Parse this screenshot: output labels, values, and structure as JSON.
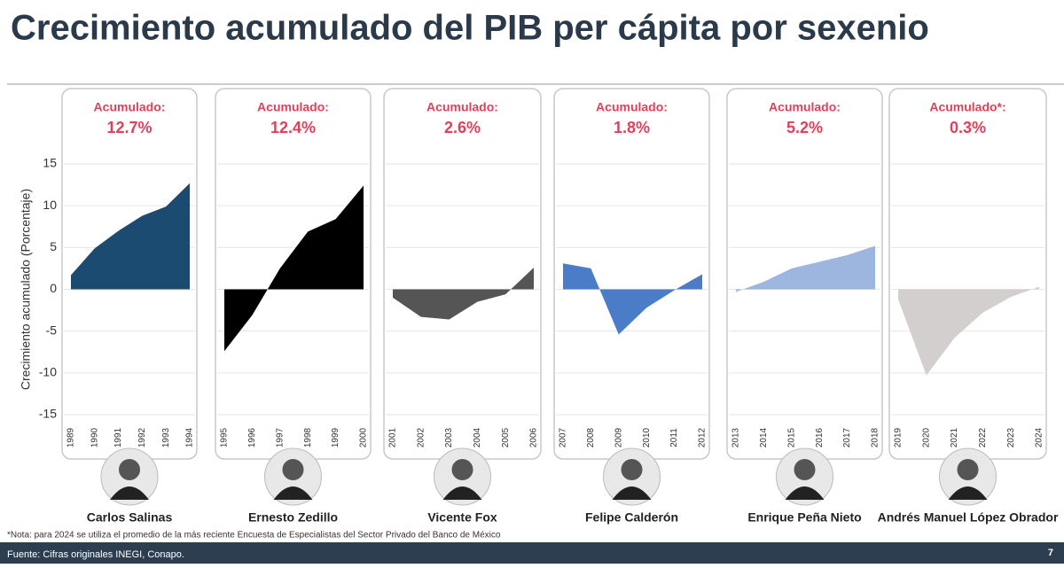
{
  "title": "Crecimiento acumulado del PIB per cápita por sexenio",
  "chart_data": [
    {
      "type": "area",
      "title": "Carlos Salinas",
      "accumulated_label": "Acumulado:",
      "accumulated": "12.7%",
      "ylabel": "Crecimiento acumulado (Porcentaje)",
      "ylim": [
        -15,
        15
      ],
      "yticks": [
        15,
        10,
        5,
        0,
        -5,
        -10,
        -15
      ],
      "grid": true,
      "categories": [
        "1989",
        "1990",
        "1991",
        "1992",
        "1993",
        "1994"
      ],
      "series": [
        {
          "color": "#1b4b70",
          "values": [
            1.7,
            4.9,
            7.0,
            8.8,
            9.9,
            12.7
          ]
        }
      ]
    },
    {
      "type": "area",
      "title": "Ernesto Zedillo",
      "accumulated_label": "Acumulado:",
      "accumulated": "12.4%",
      "ylim": [
        -15,
        15
      ],
      "categories": [
        "1995",
        "1996",
        "1997",
        "1998",
        "1999",
        "2000"
      ],
      "series": [
        {
          "color": "#000000",
          "values": [
            -7.4,
            -3.1,
            2.5,
            6.9,
            8.4,
            12.4
          ]
        }
      ]
    },
    {
      "type": "area",
      "title": "Vicente Fox",
      "accumulated_label": "Acumulado:",
      "accumulated": "2.6%",
      "ylim": [
        -15,
        15
      ],
      "categories": [
        "2001",
        "2002",
        "2003",
        "2004",
        "2005",
        "2006"
      ],
      "series": [
        {
          "color": "#555555",
          "values": [
            -1.0,
            -3.3,
            -3.6,
            -1.5,
            -0.6,
            2.6
          ]
        }
      ]
    },
    {
      "type": "area",
      "title": "Felipe Calderón",
      "accumulated_label": "Acumulado:",
      "accumulated": "1.8%",
      "ylim": [
        -15,
        15
      ],
      "categories": [
        "2007",
        "2008",
        "2009",
        "2010",
        "2011",
        "2012"
      ],
      "series": [
        {
          "color": "#4a7cc7",
          "values": [
            3.1,
            2.5,
            -5.4,
            -2.2,
            -0.1,
            1.8
          ]
        }
      ]
    },
    {
      "type": "area",
      "title": "Enrique Peña Nieto",
      "accumulated_label": "Acumulado:",
      "accumulated": "5.2%",
      "ylim": [
        -15,
        15
      ],
      "categories": [
        "2013",
        "2014",
        "2015",
        "2016",
        "2017",
        "2018"
      ],
      "series": [
        {
          "color": "#9cb6e0",
          "values": [
            -0.3,
            0.9,
            2.5,
            3.3,
            4.1,
            5.2
          ]
        }
      ]
    },
    {
      "type": "area",
      "title": "Andrés Manuel López Obrador",
      "accumulated_label": "Acumulado*:",
      "accumulated": "0.3%",
      "ylim": [
        -15,
        15
      ],
      "categories": [
        "2019",
        "2020",
        "2021",
        "2022",
        "2023",
        "2024"
      ],
      "series": [
        {
          "color": "#d2cfce",
          "values": [
            -1.2,
            -10.3,
            -5.8,
            -2.8,
            -0.9,
            0.3
          ]
        }
      ]
    }
  ],
  "note": "*Nota: para 2024 se utiliza el promedio de la más reciente Encuesta de Especialistas del Sector Privado del Banco de México",
  "source": "Fuente: Cifras originales INEGI, Conapo.",
  "page_number": 7
}
